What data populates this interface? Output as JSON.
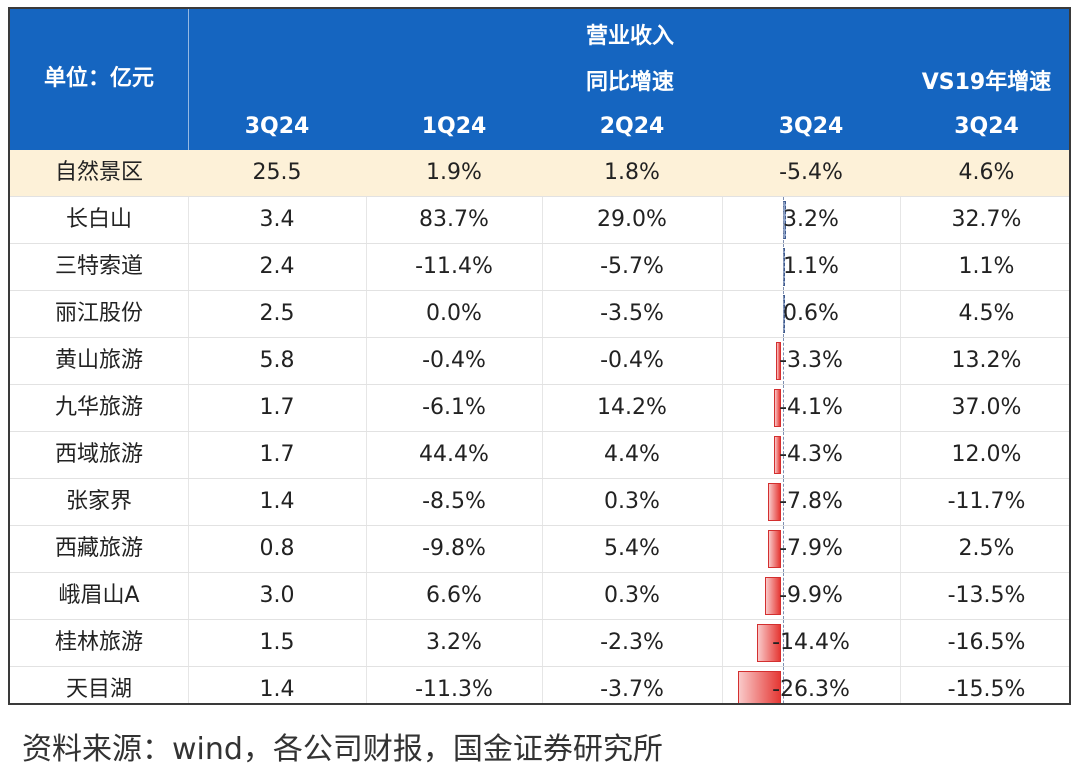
{
  "header": {
    "unit_label": "单位：亿元",
    "revenue_label": "营业收入",
    "yoy_label": "同比增速",
    "vs19_label": "VS19年增速",
    "columns": [
      "3Q24",
      "1Q24",
      "2Q24",
      "3Q24",
      "3Q24"
    ]
  },
  "rows": [
    {
      "name": "自然景区",
      "rev": "25.5",
      "q1": "1.9%",
      "q2": "1.8%",
      "q3": "-5.4%",
      "vs19": "4.6%",
      "q3_value": -5.4,
      "highlight": true
    },
    {
      "name": "长白山",
      "rev": "3.4",
      "q1": "83.7%",
      "q2": "29.0%",
      "q3": "3.2%",
      "vs19": "32.7%",
      "q3_value": 3.2
    },
    {
      "name": "三特索道",
      "rev": "2.4",
      "q1": "-11.4%",
      "q2": "-5.7%",
      "q3": "1.1%",
      "vs19": "1.1%",
      "q3_value": 1.1
    },
    {
      "name": "丽江股份",
      "rev": "2.5",
      "q1": "0.0%",
      "q2": "-3.5%",
      "q3": "0.6%",
      "vs19": "4.5%",
      "q3_value": 0.6
    },
    {
      "name": "黄山旅游",
      "rev": "5.8",
      "q1": "-0.4%",
      "q2": "-0.4%",
      "q3": "-3.3%",
      "vs19": "13.2%",
      "q3_value": -3.3
    },
    {
      "name": "九华旅游",
      "rev": "1.7",
      "q1": "-6.1%",
      "q2": "14.2%",
      "q3": "-4.1%",
      "vs19": "37.0%",
      "q3_value": -4.1
    },
    {
      "name": "西域旅游",
      "rev": "1.7",
      "q1": "44.4%",
      "q2": "4.4%",
      "q3": "-4.3%",
      "vs19": "12.0%",
      "q3_value": -4.3
    },
    {
      "name": "张家界",
      "rev": "1.4",
      "q1": "-8.5%",
      "q2": "0.3%",
      "q3": "-7.8%",
      "vs19": "-11.7%",
      "q3_value": -7.8
    },
    {
      "name": "西藏旅游",
      "rev": "0.8",
      "q1": "-9.8%",
      "q2": "5.4%",
      "q3": "-7.9%",
      "vs19": "2.5%",
      "q3_value": -7.9
    },
    {
      "name": "峨眉山A",
      "rev": "3.0",
      "q1": "6.6%",
      "q2": "0.3%",
      "q3": "-9.9%",
      "vs19": "-13.5%",
      "q3_value": -9.9
    },
    {
      "name": "桂林旅游",
      "rev": "1.5",
      "q1": "3.2%",
      "q2": "-2.3%",
      "q3": "-14.4%",
      "vs19": "-16.5%",
      "q3_value": -14.4
    },
    {
      "name": "天目湖",
      "rev": "1.4",
      "q1": "-11.3%",
      "q2": "-3.7%",
      "q3": "-26.3%",
      "vs19": "-15.5%",
      "q3_value": -26.3
    }
  ],
  "colors": {
    "header_bg": "#1565c0",
    "highlight_row": "#fdf1d8",
    "negative_bar": "#e53935",
    "positive_bar": "#90a4c8"
  },
  "source": "资料来源：wind，各公司财报，国金证券研究所"
}
